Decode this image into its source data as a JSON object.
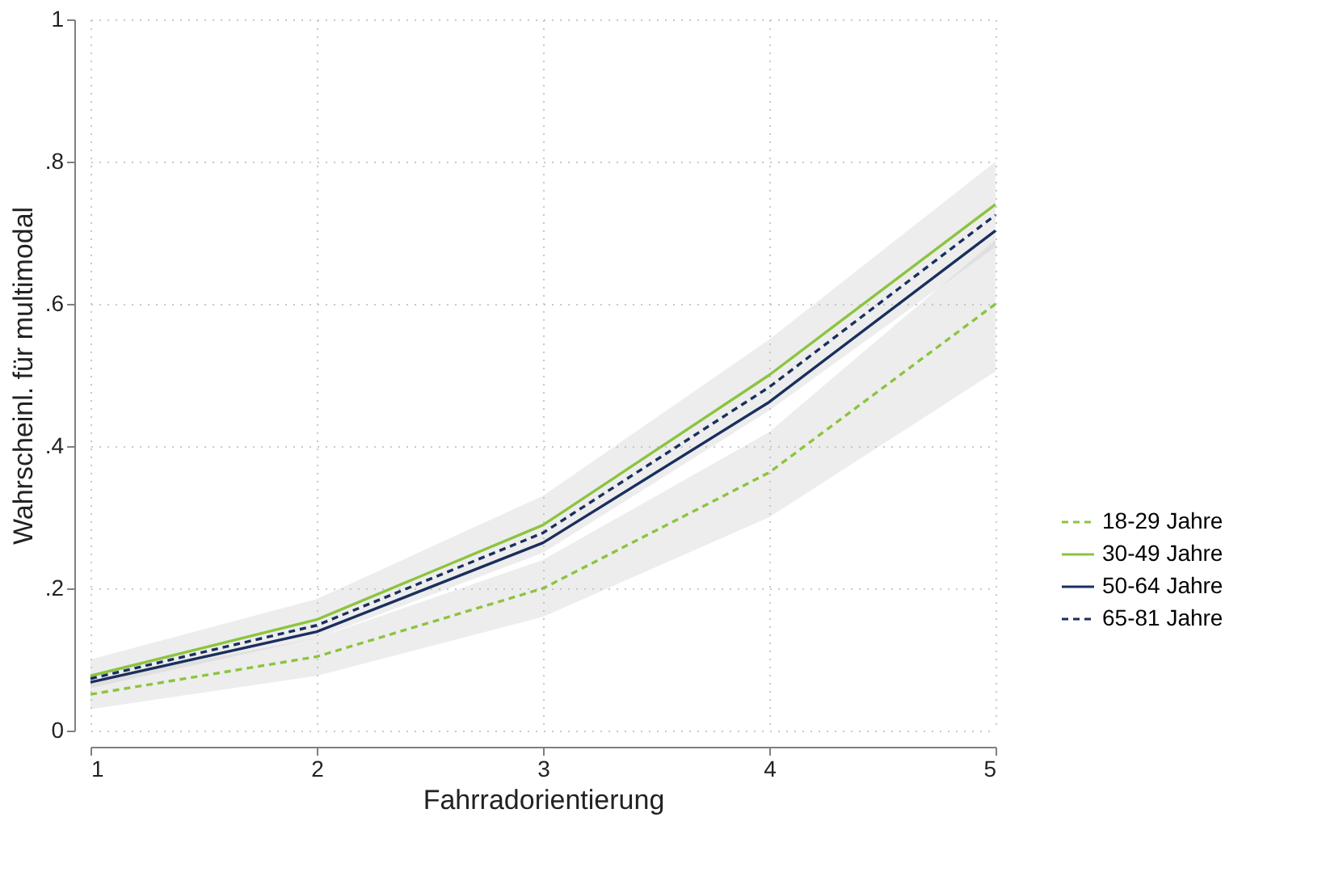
{
  "chart_data": {
    "type": "line",
    "xlabel": "Fahrradorientierung",
    "ylabel": "Wahrscheinl. für multimodal",
    "x": [
      1,
      2,
      3,
      4,
      5
    ],
    "series": [
      {
        "name": "18-29 Jahre",
        "color": "#8cc43f",
        "line_style": "dashed",
        "values": [
          0.051,
          0.104,
          0.2,
          0.363,
          0.6
        ],
        "lower": [
          0.03,
          0.077,
          0.16,
          0.3,
          0.505
        ],
        "upper": [
          0.07,
          0.13,
          0.24,
          0.42,
          0.69
        ]
      },
      {
        "name": "30-49 Jahre",
        "color": "#8cc43f",
        "line_style": "solid",
        "values": [
          0.077,
          0.156,
          0.289,
          0.5,
          0.74
        ],
        "lower": [
          0.06,
          0.13,
          0.25,
          0.45,
          0.68
        ],
        "upper": [
          0.1,
          0.185,
          0.33,
          0.55,
          0.8
        ]
      },
      {
        "name": "50-64 Jahre",
        "color": "#1a2f5e",
        "line_style": "solid",
        "values": [
          0.068,
          0.139,
          0.264,
          0.462,
          0.703
        ]
      },
      {
        "name": "65-81 Jahre",
        "color": "#1a2f5e",
        "line_style": "dashed",
        "values": [
          0.073,
          0.148,
          0.278,
          0.483,
          0.725
        ]
      }
    ],
    "xlim": [
      1,
      5
    ],
    "xticks": [
      1,
      2,
      3,
      4,
      5
    ],
    "ylim": [
      0,
      1
    ],
    "yticks": [
      0,
      {
        "value": 0.2,
        "label": ".2"
      },
      {
        "value": 0.4,
        "label": ".4"
      },
      {
        "value": 0.6,
        "label": ".6"
      },
      {
        "value": 0.8,
        "label": ".8"
      },
      1
    ],
    "grid": true,
    "legend": "right",
    "marker": "none"
  }
}
